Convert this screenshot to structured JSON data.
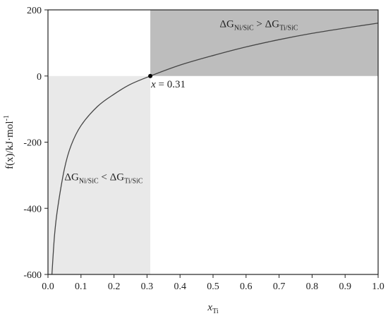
{
  "chart_data": {
    "type": "line",
    "xlabel_main": "x",
    "xlabel_sub": "Ti",
    "ylabel_text": "f(x)/kJ·mol",
    "ylabel_sup": "-1",
    "xlim": [
      0.0,
      1.0
    ],
    "ylim": [
      -600,
      200
    ],
    "x_ticks": [
      "0.0",
      "0.1",
      "0.2",
      "0.3",
      "0.4",
      "0.5",
      "0.6",
      "0.7",
      "0.8",
      "0.9",
      "1.0"
    ],
    "y_ticks": [
      "-600",
      "-400",
      "-200",
      "0",
      "200"
    ],
    "grid": false,
    "series": [
      {
        "x": [
          0.012,
          0.02,
          0.03,
          0.05,
          0.07,
          0.1,
          0.15,
          0.2,
          0.25,
          0.31,
          0.4,
          0.5,
          0.6,
          0.7,
          0.8,
          0.9,
          1.0
        ],
        "y": [
          -600,
          -480,
          -395,
          -280,
          -210,
          -150,
          -92,
          -55,
          -25,
          0,
          33,
          62,
          88,
          110,
          129,
          145,
          160
        ],
        "color": "#444444"
      }
    ],
    "regions": [
      {
        "x0": 0.0,
        "x1": 0.31,
        "y0": -600,
        "y1": 0,
        "color": "#e9e9e9"
      },
      {
        "x0": 0.31,
        "x1": 1.0,
        "y0": 0,
        "y1": 200,
        "color": "#bdbdbd"
      }
    ],
    "marker": {
      "x": 0.31,
      "y": 0,
      "color": "#000000"
    },
    "marker_label": {
      "var": "x",
      "rest": " = 0.31"
    },
    "annotations": [
      {
        "delta1": "ΔG",
        "sub1": "Ni/SiC",
        "op": " > ",
        "delta2": "ΔG",
        "sub2": "Ti/SiC",
        "x": 0.52,
        "y": 148
      },
      {
        "delta1": "ΔG",
        "sub1": "Ni/SiC",
        "op": " < ",
        "delta2": "ΔG",
        "sub2": "Ti/SiC",
        "x": 0.05,
        "y": -315
      }
    ]
  }
}
